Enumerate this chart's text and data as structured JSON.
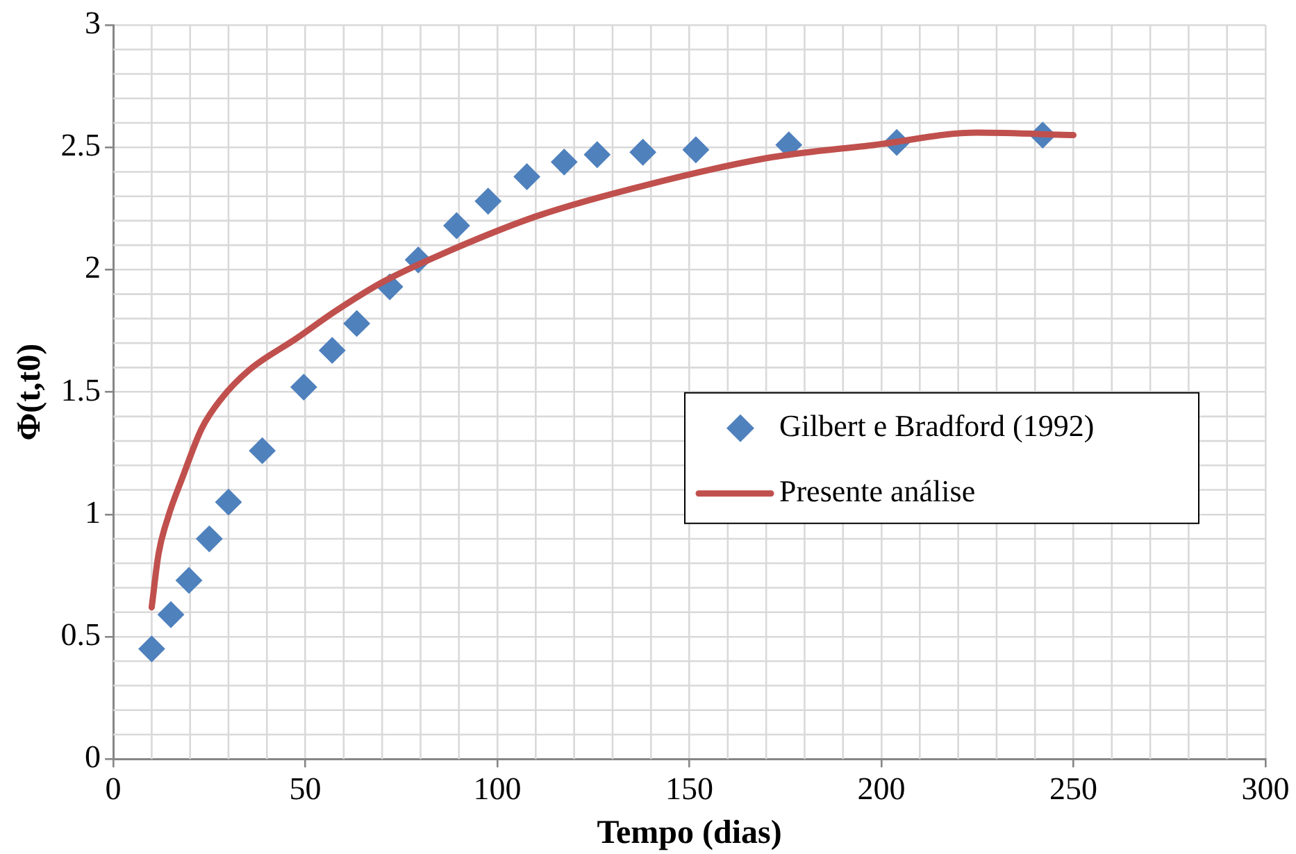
{
  "chart_data": {
    "type": "scatter",
    "xlabel": "Tempo (dias)",
    "ylabel": "Φ(t,t0)",
    "xlim": [
      0,
      300
    ],
    "xticks": [
      0,
      50,
      100,
      150,
      200,
      250,
      300
    ],
    "ylim": [
      0,
      3
    ],
    "yticks": [
      0,
      0.5,
      1,
      1.5,
      2,
      2.5,
      3
    ],
    "grid": true,
    "legend": "right",
    "series": [
      {
        "name": "Gilbert e Bradford (1992)",
        "marker": "diamond",
        "color": "#4f81bd",
        "x": [
          10,
          15,
          19.7,
          25,
          30,
          38.8,
          49.6,
          57,
          63.4,
          72,
          79.4,
          89.4,
          97.6,
          107.7,
          117.4,
          126,
          137.9,
          151.7,
          175.9,
          204,
          242
        ],
        "values": [
          0.45,
          0.59,
          0.73,
          0.9,
          1.05,
          1.26,
          1.52,
          1.67,
          1.78,
          1.93,
          2.04,
          2.18,
          2.28,
          2.38,
          2.44,
          2.47,
          2.48,
          2.49,
          2.51,
          2.52,
          2.55
        ]
      },
      {
        "name": "Presente análise",
        "type": "line",
        "marker": "none",
        "line_style": "solid",
        "color": "#c0504d",
        "x": [
          10,
          11.8,
          14.3,
          18,
          23,
          28,
          35.4,
          47.8,
          57.8,
          70.2,
          85,
          110.5,
          139.8,
          171.7,
          198.3,
          225,
          250
        ],
        "values": [
          0.62,
          0.84,
          0.99,
          1.15,
          1.35,
          1.47,
          1.59,
          1.72,
          1.83,
          1.95,
          2.06,
          2.22,
          2.35,
          2.46,
          2.51,
          2.56,
          2.55
        ]
      }
    ]
  }
}
